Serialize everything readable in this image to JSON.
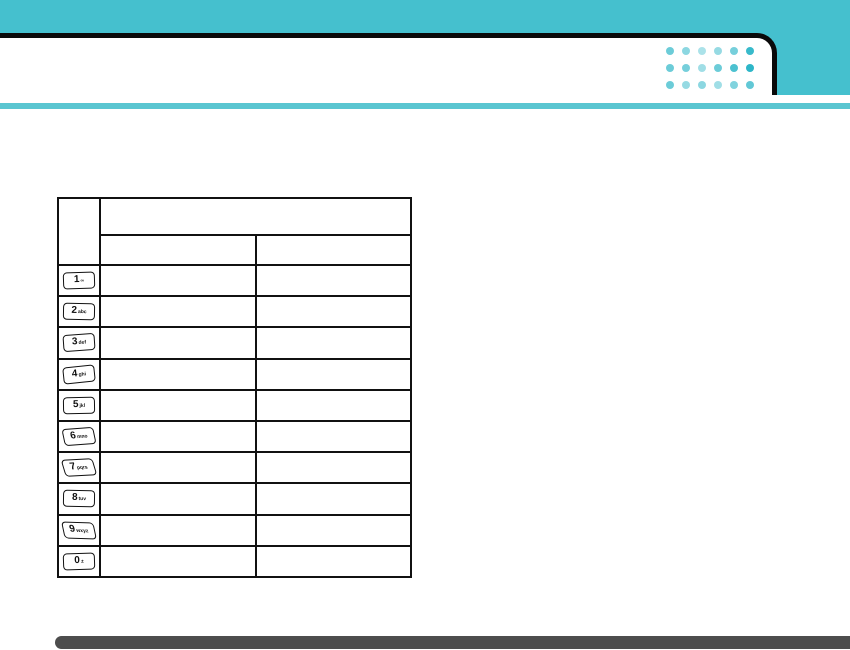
{
  "theme": {
    "accent_teal": "#45c0ce",
    "divider_teal": "#5ac6d1",
    "panel_border": "#0a0a0a",
    "footer_bar": "#4d4d4d",
    "table_border": "#111111"
  },
  "decor": {
    "dots": {
      "base_color": "#2db6c8",
      "opacity_rows": [
        [
          0.7,
          0.55,
          0.4,
          0.5,
          0.65,
          0.95
        ],
        [
          0.7,
          0.65,
          0.45,
          0.7,
          0.85,
          1.0
        ],
        [
          0.7,
          0.5,
          0.55,
          0.45,
          0.6,
          0.75
        ]
      ]
    }
  },
  "keypad_table": {
    "header": {
      "corner": "",
      "group": "",
      "sub1": "",
      "sub2": ""
    },
    "rows": [
      {
        "key": "1",
        "letters": "∞",
        "cells": [
          "",
          ""
        ]
      },
      {
        "key": "2",
        "letters": "abc",
        "cells": [
          "",
          ""
        ]
      },
      {
        "key": "3",
        "letters": "def",
        "cells": [
          "",
          ""
        ]
      },
      {
        "key": "4",
        "letters": "ghi",
        "cells": [
          "",
          ""
        ]
      },
      {
        "key": "5",
        "letters": "jkl",
        "cells": [
          "",
          ""
        ]
      },
      {
        "key": "6",
        "letters": "mno",
        "cells": [
          "",
          ""
        ]
      },
      {
        "key": "7",
        "letters": "pqrs",
        "cells": [
          "",
          ""
        ]
      },
      {
        "key": "8",
        "letters": "tuv",
        "cells": [
          "",
          ""
        ]
      },
      {
        "key": "9",
        "letters": "wxyz",
        "cells": [
          "",
          ""
        ]
      },
      {
        "key": "0",
        "letters": "±",
        "cells": [
          "",
          ""
        ]
      }
    ]
  }
}
